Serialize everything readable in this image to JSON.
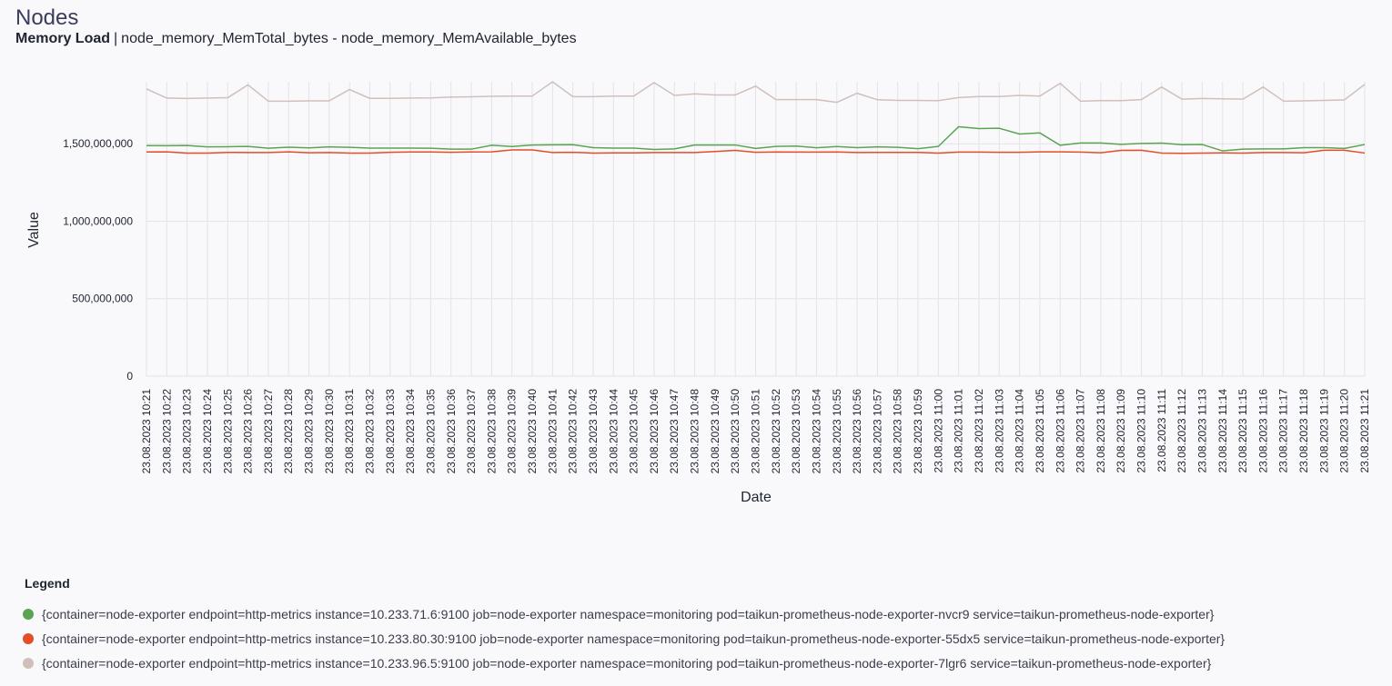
{
  "page": {
    "title": "Nodes",
    "subtitle_strong": "Memory Load",
    "subtitle_separator": "|",
    "subtitle_query": "node_memory_MemTotal_bytes - node_memory_MemAvailable_bytes"
  },
  "legend": {
    "title": "Legend"
  },
  "chart_data": {
    "type": "line",
    "xlabel": "Date",
    "ylabel": "Value",
    "ylim": [
      0,
      1900000000
    ],
    "yticks": [
      0,
      500000000,
      1000000000,
      1500000000
    ],
    "ytick_labels": [
      "0",
      "500,000,000",
      "1,000,000,000",
      "1,500,000,000"
    ],
    "grid": true,
    "legend_position": "bottom",
    "x": [
      "23.08.2023 10:21",
      "23.08.2023 10:22",
      "23.08.2023 10:23",
      "23.08.2023 10:24",
      "23.08.2023 10:25",
      "23.08.2023 10:26",
      "23.08.2023 10:27",
      "23.08.2023 10:28",
      "23.08.2023 10:29",
      "23.08.2023 10:30",
      "23.08.2023 10:31",
      "23.08.2023 10:32",
      "23.08.2023 10:33",
      "23.08.2023 10:34",
      "23.08.2023 10:35",
      "23.08.2023 10:36",
      "23.08.2023 10:37",
      "23.08.2023 10:38",
      "23.08.2023 10:39",
      "23.08.2023 10:40",
      "23.08.2023 10:41",
      "23.08.2023 10:42",
      "23.08.2023 10:43",
      "23.08.2023 10:44",
      "23.08.2023 10:45",
      "23.08.2023 10:46",
      "23.08.2023 10:47",
      "23.08.2023 10:48",
      "23.08.2023 10:49",
      "23.08.2023 10:50",
      "23.08.2023 10:51",
      "23.08.2023 10:52",
      "23.08.2023 10:53",
      "23.08.2023 10:54",
      "23.08.2023 10:55",
      "23.08.2023 10:56",
      "23.08.2023 10:57",
      "23.08.2023 10:58",
      "23.08.2023 10:59",
      "23.08.2023 11:00",
      "23.08.2023 11:01",
      "23.08.2023 11:02",
      "23.08.2023 11:03",
      "23.08.2023 11:04",
      "23.08.2023 11:05",
      "23.08.2023 11:06",
      "23.08.2023 11:07",
      "23.08.2023 11:08",
      "23.08.2023 11:09",
      "23.08.2023 11:10",
      "23.08.2023 11:11",
      "23.08.2023 11:12",
      "23.08.2023 11:13",
      "23.08.2023 11:14",
      "23.08.2023 11:15",
      "23.08.2023 11:16",
      "23.08.2023 11:17",
      "23.08.2023 11:18",
      "23.08.2023 11:19",
      "23.08.2023 11:20",
      "23.08.2023 11:21"
    ],
    "series": [
      {
        "name": "{container=node-exporter endpoint=http-metrics instance=10.233.71.6:9100 job=node-exporter namespace=monitoring pod=taikun-prometheus-node-exporter-nvcr9 service=taikun-prometheus-node-exporter}",
        "color": "#5aa454",
        "values": [
          1488000000,
          1487000000,
          1489000000,
          1480000000,
          1481000000,
          1483000000,
          1471000000,
          1478000000,
          1473000000,
          1480000000,
          1477000000,
          1472000000,
          1472000000,
          1472000000,
          1471000000,
          1465000000,
          1465000000,
          1490000000,
          1482000000,
          1492000000,
          1493000000,
          1494000000,
          1475000000,
          1472000000,
          1472000000,
          1463000000,
          1467000000,
          1492000000,
          1492000000,
          1492000000,
          1470000000,
          1483000000,
          1485000000,
          1474000000,
          1482000000,
          1475000000,
          1480000000,
          1477000000,
          1468000000,
          1483000000,
          1610000000,
          1598000000,
          1600000000,
          1563000000,
          1570000000,
          1490000000,
          1505000000,
          1505000000,
          1496000000,
          1502000000,
          1504000000,
          1494000000,
          1495000000,
          1454000000,
          1465000000,
          1467000000,
          1467000000,
          1475000000,
          1475000000,
          1470000000,
          1495000000
        ]
      },
      {
        "name": "{container=node-exporter endpoint=http-metrics instance=10.233.80.30:9100 job=node-exporter namespace=monitoring pod=taikun-prometheus-node-exporter-55dx5 service=taikun-prometheus-node-exporter}",
        "color": "#e44d25",
        "values": [
          1447000000,
          1448000000,
          1440000000,
          1440000000,
          1444000000,
          1443000000,
          1443000000,
          1448000000,
          1442000000,
          1443000000,
          1440000000,
          1440000000,
          1445000000,
          1447000000,
          1447000000,
          1445000000,
          1447000000,
          1448000000,
          1460000000,
          1460000000,
          1443000000,
          1445000000,
          1440000000,
          1441000000,
          1441000000,
          1443000000,
          1443000000,
          1443000000,
          1450000000,
          1457000000,
          1445000000,
          1447000000,
          1446000000,
          1446000000,
          1447000000,
          1443000000,
          1444000000,
          1444000000,
          1444000000,
          1440000000,
          1446000000,
          1446000000,
          1445000000,
          1445000000,
          1448000000,
          1448000000,
          1446000000,
          1442000000,
          1457000000,
          1458000000,
          1440000000,
          1438000000,
          1440000000,
          1441000000,
          1440000000,
          1443000000,
          1443000000,
          1442000000,
          1458000000,
          1458000000,
          1440000000
        ]
      },
      {
        "name": "{container=node-exporter endpoint=http-metrics instance=10.233.96.5:9100 job=node-exporter namespace=monitoring pod=taikun-prometheus-node-exporter-7lgr6 service=taikun-prometheus-node-exporter}",
        "color": "#cfc0bb",
        "values": [
          1854000000,
          1795000000,
          1792000000,
          1795000000,
          1797000000,
          1880000000,
          1775000000,
          1775000000,
          1777000000,
          1777000000,
          1850000000,
          1793000000,
          1793000000,
          1795000000,
          1796000000,
          1801000000,
          1803000000,
          1806000000,
          1808000000,
          1808000000,
          1900000000,
          1804000000,
          1804000000,
          1808000000,
          1808000000,
          1895000000,
          1812000000,
          1822000000,
          1815000000,
          1815000000,
          1872000000,
          1785000000,
          1785000000,
          1785000000,
          1767000000,
          1826000000,
          1784000000,
          1780000000,
          1780000000,
          1778000000,
          1798000000,
          1805000000,
          1805000000,
          1812000000,
          1808000000,
          1890000000,
          1775000000,
          1778000000,
          1778000000,
          1785000000,
          1866000000,
          1788000000,
          1792000000,
          1790000000,
          1788000000,
          1866000000,
          1775000000,
          1777000000,
          1780000000,
          1783000000,
          1883000000
        ]
      }
    ]
  }
}
